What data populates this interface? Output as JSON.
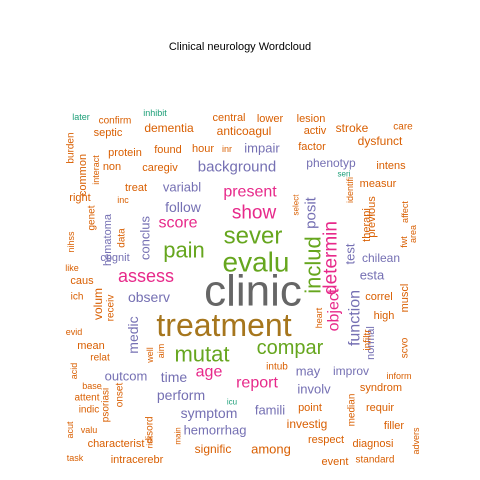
{
  "chart_data": {
    "type": "wordcloud",
    "title": "Clinical neurology  Wordcloud",
    "palette": {
      "orange": "#D95F02",
      "gray": "#666666",
      "brown": "#A6761D",
      "green": "#66A61E",
      "pink": "#E7298A",
      "purple": "#7570B3",
      "teal": "#1B9E77",
      "gold": "#E6AB02"
    },
    "words": [
      {
        "text": "clinic",
        "color": "gray"
      },
      {
        "text": "treatment",
        "color": "brown"
      },
      {
        "text": "evalu",
        "color": "green"
      },
      {
        "text": "sever",
        "color": "green"
      },
      {
        "text": "pain",
        "color": "green"
      },
      {
        "text": "mutat",
        "color": "green"
      },
      {
        "text": "compar",
        "color": "green"
      },
      {
        "text": "includ",
        "color": "green"
      },
      {
        "text": "show",
        "color": "pink"
      },
      {
        "text": "determin",
        "color": "pink"
      },
      {
        "text": "object",
        "color": "pink"
      },
      {
        "text": "assess",
        "color": "pink"
      },
      {
        "text": "present",
        "color": "pink"
      },
      {
        "text": "score",
        "color": "pink"
      },
      {
        "text": "age",
        "color": "pink"
      },
      {
        "text": "report",
        "color": "pink"
      },
      {
        "text": "posit",
        "color": "purple"
      },
      {
        "text": "function",
        "color": "purple"
      },
      {
        "text": "background",
        "color": "purple"
      },
      {
        "text": "follow",
        "color": "purple"
      },
      {
        "text": "variabl",
        "color": "purple"
      },
      {
        "text": "conclus",
        "color": "purple"
      },
      {
        "text": "observ",
        "color": "purple"
      },
      {
        "text": "medic",
        "color": "purple"
      },
      {
        "text": "perform",
        "color": "purple"
      },
      {
        "text": "time",
        "color": "purple"
      },
      {
        "text": "outcom",
        "color": "purple"
      },
      {
        "text": "symptom",
        "color": "purple"
      },
      {
        "text": "hemorrhag",
        "color": "purple"
      },
      {
        "text": "famili",
        "color": "purple"
      },
      {
        "text": "impair",
        "color": "purple"
      },
      {
        "text": "test",
        "color": "purple"
      },
      {
        "text": "esta",
        "color": "purple"
      },
      {
        "text": "may",
        "color": "purple"
      },
      {
        "text": "involv",
        "color": "purple"
      },
      {
        "text": "improv",
        "color": "purple"
      },
      {
        "text": "chilean",
        "color": "purple"
      },
      {
        "text": "phenotyp",
        "color": "purple"
      },
      {
        "text": "normal",
        "color": "purple"
      },
      {
        "text": "hematoma",
        "color": "purple"
      },
      {
        "text": "cognit",
        "color": "purple"
      },
      {
        "text": "dementia",
        "color": "orange"
      },
      {
        "text": "anticoagul",
        "color": "orange"
      },
      {
        "text": "central",
        "color": "orange"
      },
      {
        "text": "lower",
        "color": "orange"
      },
      {
        "text": "lesion",
        "color": "orange"
      },
      {
        "text": "stroke",
        "color": "orange"
      },
      {
        "text": "care",
        "color": "orange"
      },
      {
        "text": "dysfunct",
        "color": "orange"
      },
      {
        "text": "activ",
        "color": "orange"
      },
      {
        "text": "factor",
        "color": "orange"
      },
      {
        "text": "intens",
        "color": "orange"
      },
      {
        "text": "measur",
        "color": "orange"
      },
      {
        "text": "previous",
        "color": "orange"
      },
      {
        "text": "therapi",
        "color": "orange"
      },
      {
        "text": "identifi",
        "color": "orange"
      },
      {
        "text": "select",
        "color": "orange"
      },
      {
        "text": "affect",
        "color": "orange"
      },
      {
        "text": "area",
        "color": "orange"
      },
      {
        "text": "fwt",
        "color": "orange"
      },
      {
        "text": "muscl",
        "color": "orange"
      },
      {
        "text": "correl",
        "color": "orange"
      },
      {
        "text": "high",
        "color": "orange"
      },
      {
        "text": "infiltr",
        "color": "orange"
      },
      {
        "text": "scvo",
        "color": "orange"
      },
      {
        "text": "inform",
        "color": "orange"
      },
      {
        "text": "syndrom",
        "color": "orange"
      },
      {
        "text": "requir",
        "color": "orange"
      },
      {
        "text": "filler",
        "color": "orange"
      },
      {
        "text": "advers",
        "color": "orange"
      },
      {
        "text": "diagnosi",
        "color": "orange"
      },
      {
        "text": "standard",
        "color": "orange"
      },
      {
        "text": "event",
        "color": "orange"
      },
      {
        "text": "respect",
        "color": "orange"
      },
      {
        "text": "median",
        "color": "orange"
      },
      {
        "text": "point",
        "color": "orange"
      },
      {
        "text": "investig",
        "color": "orange"
      },
      {
        "text": "among",
        "color": "orange"
      },
      {
        "text": "signific",
        "color": "orange"
      },
      {
        "text": "intracerebr",
        "color": "orange"
      },
      {
        "text": "characterist",
        "color": "orange"
      },
      {
        "text": "task",
        "color": "orange"
      },
      {
        "text": "acut",
        "color": "orange"
      },
      {
        "text": "indic",
        "color": "orange"
      },
      {
        "text": "attent",
        "color": "orange"
      },
      {
        "text": "base",
        "color": "orange"
      },
      {
        "text": "acid",
        "color": "orange"
      },
      {
        "text": "valu",
        "color": "orange"
      },
      {
        "text": "psoriasi",
        "color": "orange"
      },
      {
        "text": "onset",
        "color": "orange"
      },
      {
        "text": "disord",
        "color": "orange"
      },
      {
        "text": "risk",
        "color": "orange"
      },
      {
        "text": "main",
        "color": "orange"
      },
      {
        "text": "relat",
        "color": "orange"
      },
      {
        "text": "mean",
        "color": "orange"
      },
      {
        "text": "evid",
        "color": "orange"
      },
      {
        "text": "volum",
        "color": "orange"
      },
      {
        "text": "receiv",
        "color": "orange"
      },
      {
        "text": "ich",
        "color": "orange"
      },
      {
        "text": "like",
        "color": "orange"
      },
      {
        "text": "caus",
        "color": "orange"
      },
      {
        "text": "nihss",
        "color": "orange"
      },
      {
        "text": "genet",
        "color": "orange"
      },
      {
        "text": "data",
        "color": "orange"
      },
      {
        "text": "right",
        "color": "orange"
      },
      {
        "text": "inc",
        "color": "orange"
      },
      {
        "text": "treat",
        "color": "orange"
      },
      {
        "text": "caregiv",
        "color": "orange"
      },
      {
        "text": "non",
        "color": "orange"
      },
      {
        "text": "common",
        "color": "orange"
      },
      {
        "text": "burden",
        "color": "orange"
      },
      {
        "text": "interact",
        "color": "orange"
      },
      {
        "text": "protein",
        "color": "orange"
      },
      {
        "text": "septic",
        "color": "orange"
      },
      {
        "text": "confirm",
        "color": "orange"
      },
      {
        "text": "found",
        "color": "orange"
      },
      {
        "text": "hour",
        "color": "orange"
      },
      {
        "text": "inr",
        "color": "orange"
      },
      {
        "text": "later",
        "color": "teal"
      },
      {
        "text": "inhibit",
        "color": "teal"
      },
      {
        "text": "seri",
        "color": "teal"
      },
      {
        "text": "icu",
        "color": "teal"
      },
      {
        "text": "intub",
        "color": "orange"
      },
      {
        "text": "heart",
        "color": "orange"
      },
      {
        "text": "well",
        "color": "orange"
      },
      {
        "text": "aim",
        "color": "orange"
      }
    ]
  }
}
